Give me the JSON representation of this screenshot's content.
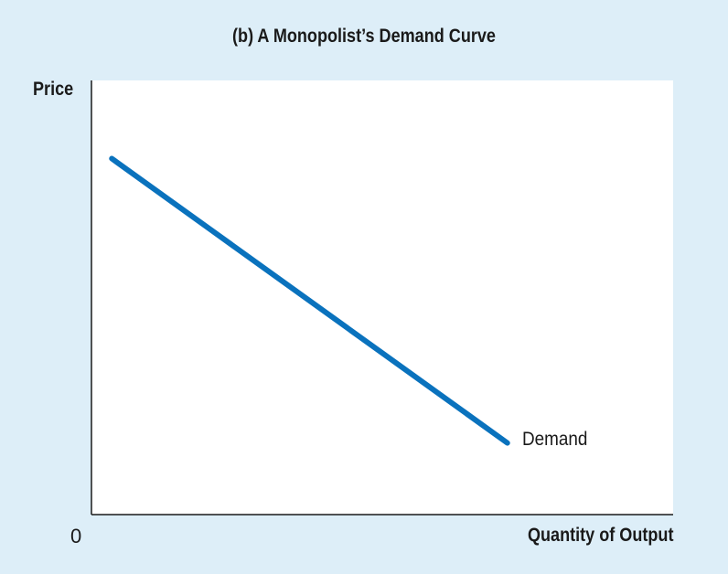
{
  "chart_data": {
    "type": "line",
    "title": "(b) A Monopolist’s Demand Curve",
    "xlabel": "Quantity of Output",
    "ylabel": "Price",
    "origin_label": "0",
    "xlim": [
      0,
      100
    ],
    "ylim": [
      0,
      100
    ],
    "grid": false,
    "series": [
      {
        "name": "Demand",
        "color": "#0a72bd",
        "points": [
          {
            "x": 3.5,
            "y": 82
          },
          {
            "x": 71.5,
            "y": 16.5
          }
        ]
      }
    ],
    "colors": {
      "background": "#ddeef8",
      "plot_area": "#ffffff",
      "axis": "#1a1a1a"
    }
  }
}
